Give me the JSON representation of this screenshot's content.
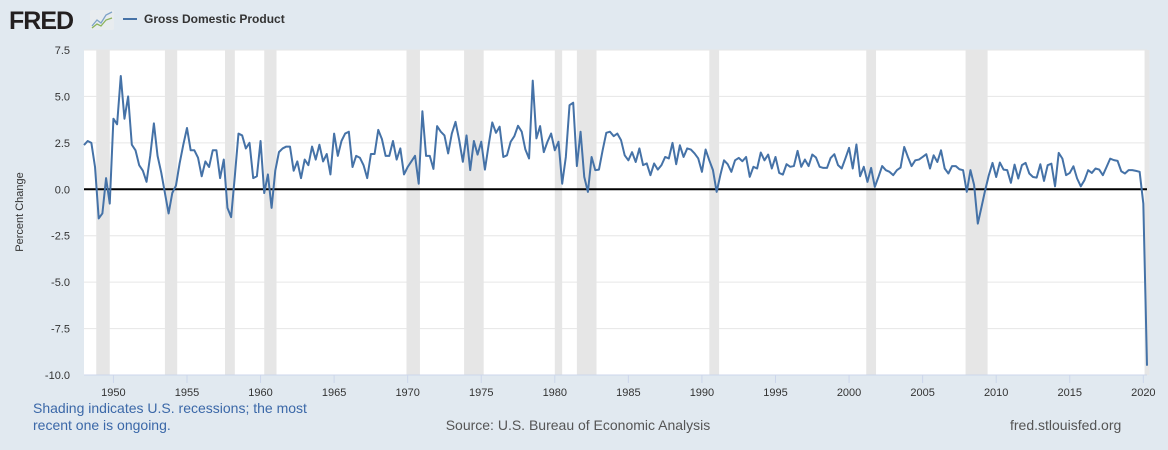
{
  "header": {
    "logo_text": "FRED",
    "legend_label": "Gross Domestic Product"
  },
  "footer": {
    "note_line1": "Shading indicates U.S. recessions; the most",
    "note_line2": "recent one is ongoing.",
    "source": "Source: U.S. Bureau of Economic Analysis",
    "site": "fred.stlouisfed.org"
  },
  "colors": {
    "series": "#4572a7",
    "recession": "#e6e6e6",
    "grid": "#e6e6e6",
    "background": "#e1e9f0"
  },
  "chart_data": {
    "type": "line",
    "title": "",
    "xlabel": "",
    "ylabel": "Percent Change",
    "frequency": "quarterly",
    "start": "1948-01-01",
    "xlim": [
      1948.0,
      2020.25
    ],
    "ylim": [
      -10,
      7.5
    ],
    "x_ticks": [
      "1950",
      "1955",
      "1960",
      "1965",
      "1970",
      "1975",
      "1980",
      "1985",
      "1990",
      "1995",
      "2000",
      "2005",
      "2010",
      "2015",
      "2020"
    ],
    "y_ticks": [
      "7.5",
      "5.0",
      "2.5",
      "0.0",
      "-2.5",
      "-5.0",
      "-7.5",
      "-10.0"
    ],
    "grid": true,
    "legend": "top-left",
    "recessions": [
      [
        "1948-11",
        "1949-10"
      ],
      [
        "1953-07",
        "1954-05"
      ],
      [
        "1957-08",
        "1958-04"
      ],
      [
        "1960-04",
        "1961-02"
      ],
      [
        "1969-12",
        "1970-11"
      ],
      [
        "1973-11",
        "1975-03"
      ],
      [
        "1980-01",
        "1980-07"
      ],
      [
        "1981-07",
        "1982-11"
      ],
      [
        "1990-07",
        "1991-03"
      ],
      [
        "2001-03",
        "2001-11"
      ],
      [
        "2007-12",
        "2009-06"
      ],
      [
        "2020-02",
        "2020-06"
      ]
    ],
    "series": [
      {
        "name": "Gross Domestic Product",
        "values": [
          2.38,
          2.6,
          2.5,
          1.2,
          -1.57,
          -1.3,
          0.6,
          -0.77,
          3.8,
          3.5,
          6.1,
          3.8,
          5.0,
          2.4,
          2.1,
          1.3,
          1.0,
          0.4,
          1.8,
          3.55,
          1.8,
          0.9,
          -0.2,
          -1.3,
          -0.2,
          0.2,
          1.4,
          2.4,
          3.3,
          2.1,
          2.1,
          1.7,
          0.7,
          1.5,
          1.2,
          2.1,
          2.1,
          0.6,
          1.6,
          -1.0,
          -1.5,
          0.7,
          3.0,
          2.9,
          2.2,
          2.5,
          0.6,
          0.7,
          2.6,
          -0.2,
          0.8,
          -1.0,
          1.0,
          2.0,
          2.2,
          2.3,
          2.3,
          1.0,
          1.5,
          0.6,
          1.6,
          1.3,
          2.3,
          1.6,
          2.4,
          1.5,
          1.9,
          0.8,
          3.0,
          1.8,
          2.6,
          3.0,
          3.1,
          1.2,
          1.8,
          1.7,
          1.3,
          0.6,
          1.9,
          1.9,
          3.2,
          2.7,
          1.8,
          1.8,
          2.6,
          1.6,
          2.2,
          0.8,
          1.2,
          1.5,
          1.8,
          0.3,
          4.2,
          1.8,
          1.8,
          1.1,
          3.4,
          3.1,
          2.9,
          1.93,
          3.0,
          3.63,
          2.65,
          1.48,
          2.9,
          1.03,
          2.6,
          1.87,
          2.56,
          1.06,
          2.37,
          3.6,
          3.04,
          3.37,
          1.74,
          1.83,
          2.56,
          2.86,
          3.42,
          3.1,
          2.14,
          1.66,
          5.85,
          2.74,
          3.4,
          2.0,
          2.56,
          3.0,
          2.1,
          2.56,
          0.3,
          1.74,
          4.53,
          4.66,
          1.25,
          3.1,
          0.67,
          -0.14,
          1.74,
          1.03,
          1.06,
          2.1,
          3.04,
          3.1,
          2.86,
          3.0,
          2.65,
          1.83,
          1.56,
          2.0,
          1.47,
          2.2,
          1.3,
          1.39,
          0.76,
          1.39,
          1.06,
          1.3,
          1.74,
          1.66,
          2.5,
          1.35,
          2.37,
          1.74,
          2.2,
          2.14,
          1.93,
          1.66,
          0.94,
          2.14,
          1.56,
          1.03,
          -0.14,
          0.76,
          1.56,
          1.35,
          0.94,
          1.56,
          1.69,
          1.51,
          1.74,
          0.67,
          1.21,
          1.12,
          1.98,
          1.56,
          1.87,
          1.12,
          1.74,
          0.88,
          0.79,
          1.35,
          1.21,
          1.25,
          2.07,
          1.21,
          1.6,
          1.25,
          1.87,
          1.71,
          1.21,
          1.15,
          1.15,
          1.69,
          1.89,
          1.3,
          1.12,
          1.66,
          2.23,
          1.12,
          2.41,
          0.7,
          1.21,
          0.4,
          1.15,
          0.13,
          0.67,
          1.25,
          1.03,
          0.94,
          0.76,
          1.03,
          1.17,
          2.28,
          1.74,
          1.25,
          1.56,
          1.6,
          1.74,
          1.89,
          1.12,
          1.83,
          1.47,
          2.1,
          1.12,
          0.85,
          1.25,
          1.25,
          1.08,
          1.03,
          -0.14,
          1.03,
          0.23,
          -1.85,
          -0.96,
          -0.05,
          0.76,
          1.42,
          0.66,
          1.44,
          1.06,
          1.03,
          0.35,
          1.33,
          0.58,
          1.3,
          1.42,
          0.85,
          0.66,
          0.63,
          1.35,
          0.45,
          1.3,
          1.38,
          0.16,
          1.96,
          1.65,
          0.76,
          0.88,
          1.24,
          0.58,
          0.16,
          0.49,
          1.03,
          0.88,
          1.12,
          1.06,
          0.76,
          1.2,
          1.65,
          1.57,
          1.53,
          0.97,
          0.85,
          1.03,
          1.03,
          0.99,
          0.94,
          -0.77,
          -9.5
        ]
      }
    ]
  }
}
